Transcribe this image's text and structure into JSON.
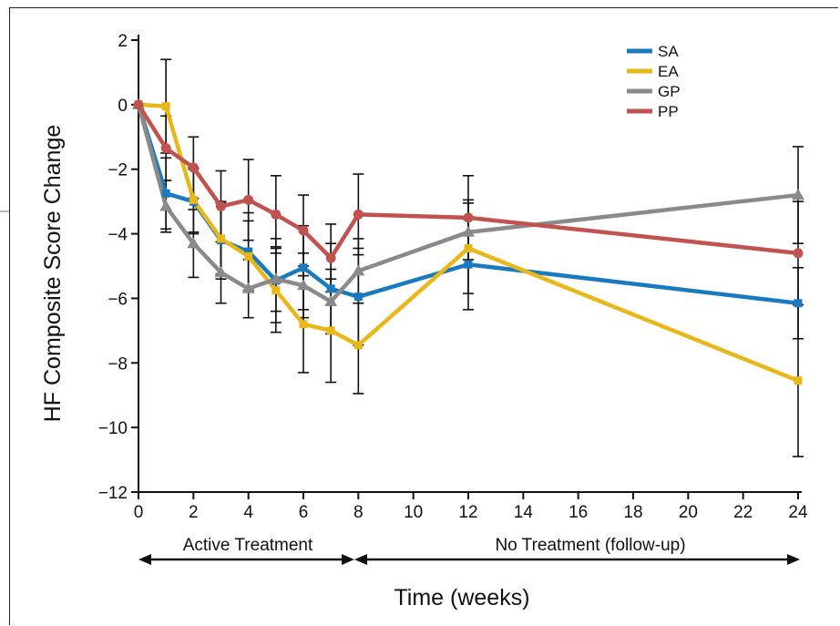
{
  "chart_data": {
    "type": "line",
    "xlabel": "Time (weeks)",
    "ylabel": "HF Composite Score Change",
    "xlim": [
      0,
      24
    ],
    "ylim": [
      -12,
      2
    ],
    "x_ticks": [
      0,
      2,
      4,
      6,
      8,
      10,
      12,
      14,
      16,
      18,
      20,
      22,
      24
    ],
    "y_ticks": [
      2,
      0,
      -2,
      -4,
      -6,
      -8,
      -10,
      -12
    ],
    "y_tick_labels": [
      "2",
      "0",
      "−2",
      "−4",
      "−6",
      "−8",
      "−10",
      "−12"
    ],
    "grid": false,
    "legend_position": "top-right",
    "periods": [
      {
        "label": "Active Treatment",
        "from": 0,
        "to": 8
      },
      {
        "label": "No Treatment (follow-up)",
        "from": 8,
        "to": 24
      }
    ],
    "series": [
      {
        "name": "SA",
        "color": "#1a7abf",
        "marker": "square",
        "x": [
          0,
          1,
          2,
          3,
          4,
          5,
          6,
          7,
          8,
          12,
          24
        ],
        "y": [
          0,
          -2.75,
          -3.0,
          -4.2,
          -4.55,
          -5.45,
          -5.05,
          -5.7,
          -5.95,
          -4.95,
          -6.15
        ],
        "err": [
          0,
          1.1,
          1.0,
          1.2,
          1.2,
          1.3,
          1.3,
          1.4,
          1.5,
          1.4,
          1.1
        ]
      },
      {
        "name": "EA",
        "color": "#e8b71a",
        "marker": "square",
        "x": [
          0,
          1,
          2,
          3,
          4,
          5,
          6,
          7,
          8,
          12,
          24
        ],
        "y": [
          0,
          -0.05,
          -2.95,
          -4.15,
          -4.7,
          -5.75,
          -6.8,
          -7.0,
          -7.45,
          -4.45,
          -8.55
        ],
        "err": [
          0,
          1.45,
          1.0,
          1.1,
          1.1,
          1.3,
          1.5,
          1.6,
          1.5,
          1.4,
          2.35
        ]
      },
      {
        "name": "GP",
        "color": "#8a8a8a",
        "marker": "triangle",
        "x": [
          0,
          1,
          2,
          3,
          4,
          5,
          6,
          7,
          8,
          12,
          24
        ],
        "y": [
          0,
          -3.15,
          -4.3,
          -5.2,
          -5.7,
          -5.4,
          -5.6,
          -6.1,
          -5.15,
          -3.95,
          -2.8
        ],
        "err": [
          0,
          0.8,
          1.05,
          0.95,
          0.9,
          1.0,
          1.0,
          1.0,
          1.0,
          1.0,
          1.5
        ]
      },
      {
        "name": "PP",
        "color": "#c0524f",
        "marker": "circle",
        "x": [
          0,
          1,
          2,
          3,
          4,
          5,
          6,
          7,
          8,
          12,
          24
        ],
        "y": [
          0,
          -1.35,
          -1.95,
          -3.15,
          -2.95,
          -3.4,
          -3.9,
          -4.75,
          -3.4,
          -3.5,
          -4.6
        ],
        "err": [
          0,
          1.0,
          0.95,
          1.1,
          1.25,
          1.2,
          1.1,
          1.05,
          1.25,
          1.3,
          1.6
        ]
      }
    ]
  }
}
